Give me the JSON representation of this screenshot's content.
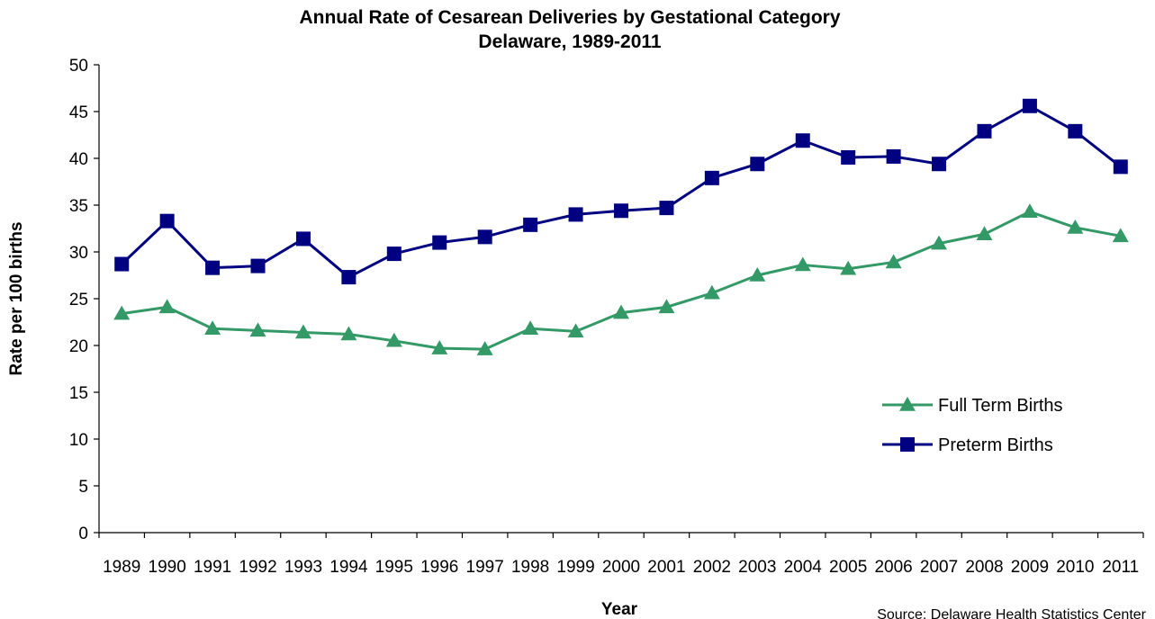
{
  "chart_data": {
    "type": "line",
    "title": "Annual Rate of Cesarean Deliveries by Gestational Category",
    "subtitle": "Delaware, 1989-2011",
    "xlabel": "Year",
    "ylabel": "Rate per 100 births",
    "source": "Source: Delaware Health Statistics Center",
    "ylim": [
      0,
      50
    ],
    "yticks": [
      0,
      5,
      10,
      15,
      20,
      25,
      30,
      35,
      40,
      45,
      50
    ],
    "grid": false,
    "legend_position": "right",
    "categories": [
      "1989",
      "1990",
      "1991",
      "1992",
      "1993",
      "1994",
      "1995",
      "1996",
      "1997",
      "1998",
      "1999",
      "2000",
      "2001",
      "2002",
      "2003",
      "2004",
      "2005",
      "2006",
      "2007",
      "2008",
      "2009",
      "2010",
      "2011"
    ],
    "series": [
      {
        "name": "Full Term Births",
        "color": "#339966",
        "marker": "triangle",
        "values": [
          23.4,
          24.1,
          21.8,
          21.6,
          21.4,
          21.2,
          20.5,
          19.7,
          19.6,
          21.8,
          21.5,
          23.5,
          24.1,
          25.6,
          27.5,
          28.6,
          28.2,
          28.9,
          30.9,
          31.9,
          34.3,
          32.6,
          31.7
        ]
      },
      {
        "name": "Preterm Births",
        "color": "#000080",
        "marker": "square",
        "values": [
          28.7,
          33.3,
          28.3,
          28.5,
          31.4,
          27.3,
          29.8,
          31.0,
          31.6,
          32.9,
          34.0,
          34.4,
          34.7,
          37.9,
          39.4,
          41.9,
          40.1,
          40.2,
          39.4,
          42.9,
          45.6,
          42.9,
          39.1
        ]
      }
    ]
  }
}
